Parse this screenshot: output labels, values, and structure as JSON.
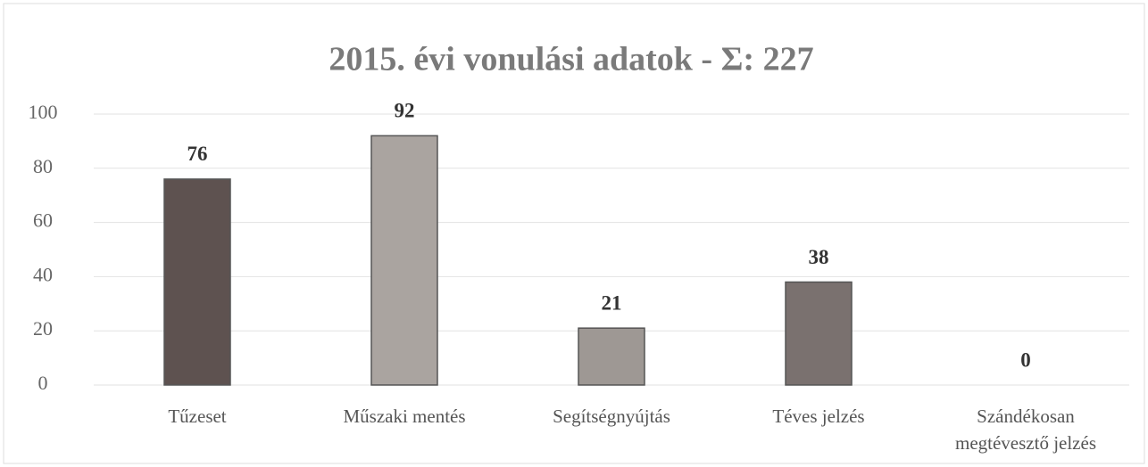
{
  "chart_data": {
    "type": "bar",
    "title": "2015. évi vonulási adatok - Σ: 227",
    "categories": [
      "Tűzeset",
      "Műszaki mentés",
      "Segítségnyújtás",
      "Téves jelzés",
      "Szándékosan megtévesztő jelzés"
    ],
    "values": [
      76,
      92,
      21,
      38,
      0
    ],
    "colors": [
      "#5e5250",
      "#aaa4a0",
      "#9e9894",
      "#7a716f",
      "#8a8482"
    ],
    "ylim": [
      0,
      100
    ],
    "yticks": [
      0,
      20,
      40,
      60,
      80,
      100
    ],
    "grid": true
  }
}
